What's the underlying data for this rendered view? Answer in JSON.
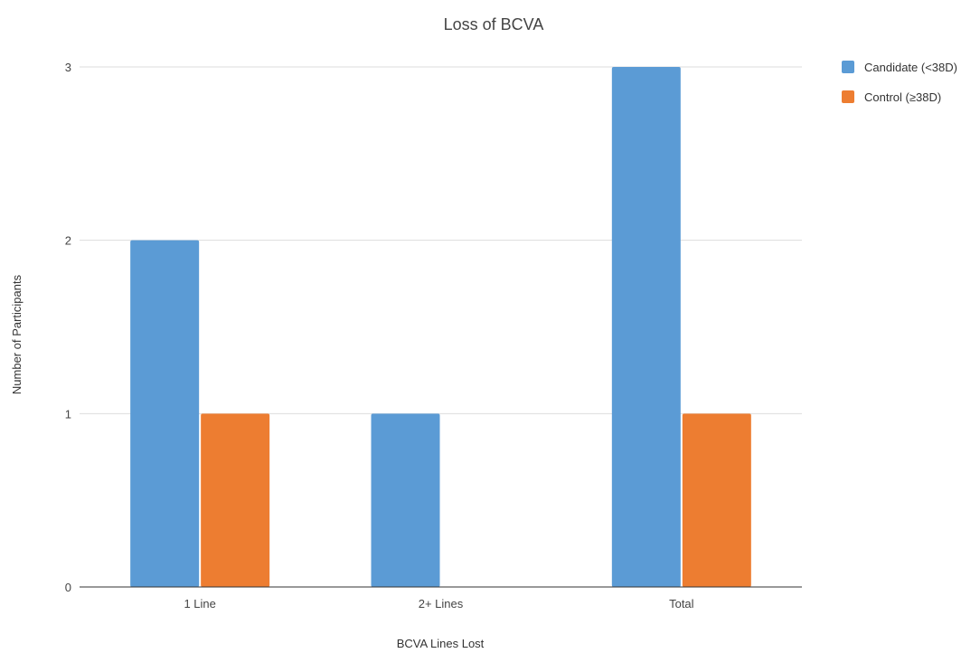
{
  "chart_data": {
    "type": "bar",
    "title": "Loss of BCVA",
    "xlabel": "BCVA Lines Lost",
    "ylabel": "Number of Participants",
    "categories": [
      "1 Line",
      "2+ Lines",
      "Total"
    ],
    "series": [
      {
        "name": "Candidate (<38D)",
        "color": "#5b9bd5",
        "values": [
          2,
          1,
          3
        ]
      },
      {
        "name": "Control (≥38D)",
        "color": "#ed7d31",
        "values": [
          1,
          0,
          1
        ]
      }
    ],
    "ylim": [
      0,
      3
    ],
    "yticks": [
      0,
      1,
      2,
      3
    ],
    "grid": true,
    "legend_position": "right"
  }
}
